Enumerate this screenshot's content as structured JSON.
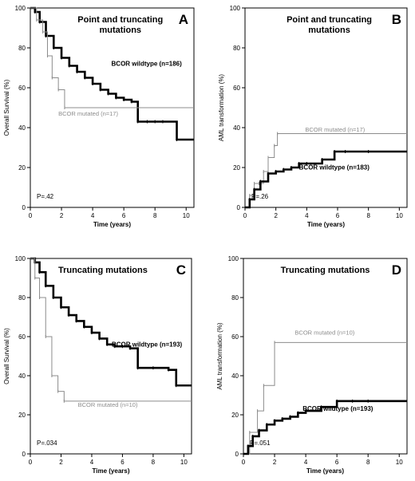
{
  "panels": [
    {
      "letter": "A",
      "title_lines": [
        "Point and truncating",
        "mutations"
      ],
      "ylabel": "Overall Survival (%)",
      "xlabel": "Time (years)",
      "p_value": "P=.42",
      "y_ticks": [
        "0",
        "20",
        "40",
        "60",
        "80",
        "100"
      ],
      "x_ticks": [
        "0",
        "2",
        "4",
        "6",
        "8",
        "10"
      ],
      "series_labels": [
        "BCOR wildtype (n=186)",
        "BCOR mutated (n=17)"
      ]
    },
    {
      "letter": "B",
      "title_lines": [
        "Point and truncating",
        "mutations"
      ],
      "ylabel": "AML transformation (%)",
      "xlabel": "Time (years)",
      "p_value": "P=.26",
      "y_ticks": [
        "0",
        "20",
        "40",
        "60",
        "80",
        "100"
      ],
      "x_ticks": [
        "0",
        "2",
        "4",
        "6",
        "8",
        "10"
      ],
      "series_labels": [
        "BCOR mutated (n=17)",
        "BCOR wildtype (n=183)"
      ]
    },
    {
      "letter": "C",
      "title_lines": [
        "Truncating mutations"
      ],
      "ylabel": "Overall Survival (%)",
      "xlabel": "Time (years)",
      "p_value": "P=.034",
      "y_ticks": [
        "0",
        "20",
        "40",
        "60",
        "80",
        "100"
      ],
      "x_ticks": [
        "0",
        "2",
        "4",
        "6",
        "8",
        "10"
      ],
      "series_labels": [
        "BCOR wildtype (n=193)",
        "BCOR mutated (n=10)"
      ]
    },
    {
      "letter": "D",
      "title_lines": [
        "Truncating mutations"
      ],
      "ylabel": "AML transformation (%)",
      "xlabel": "Time (years)",
      "p_value": "P=.051",
      "y_ticks": [
        "0",
        "20",
        "40",
        "60",
        "80",
        "100"
      ],
      "x_ticks": [
        "0",
        "2",
        "4",
        "6",
        "8",
        "10"
      ],
      "series_labels": [
        "BCOR mutated (n=10)",
        "BCOR wildtype (n=193)"
      ]
    }
  ],
  "colors": {
    "wildtype": "#000000",
    "mutated": "#8c8c8c",
    "axis": "#000000"
  },
  "chart_data": [
    {
      "type": "line",
      "title": "Point and truncating mutations",
      "xlabel": "Time (years)",
      "ylabel": "Overall Survival (%)",
      "xlim": [
        0,
        10.5
      ],
      "ylim": [
        0,
        100
      ],
      "annotation": "P=.42",
      "series": [
        {
          "name": "BCOR wildtype (n=186)",
          "x": [
            0,
            0.3,
            0.6,
            1,
            1.5,
            2,
            2.5,
            3,
            3.5,
            4,
            4.5,
            5,
            5.5,
            6,
            6.5,
            6.9,
            7.5,
            8,
            8.5,
            9.4,
            10.5
          ],
          "y": [
            100,
            98,
            93,
            86,
            80,
            75,
            71,
            68,
            65,
            62,
            59,
            57,
            55,
            54,
            53,
            43,
            43,
            43,
            43,
            34,
            34
          ]
        },
        {
          "name": "BCOR mutated (n=17)",
          "x": [
            0,
            0.4,
            0.8,
            1.1,
            1.4,
            1.8,
            2.2,
            10.5
          ],
          "y": [
            100,
            94,
            88,
            76,
            65,
            59,
            50,
            50
          ]
        }
      ]
    },
    {
      "type": "line",
      "title": "Point and truncating mutations",
      "xlabel": "Time (years)",
      "ylabel": "AML transformation (%)",
      "xlim": [
        0,
        10.5
      ],
      "ylim": [
        0,
        100
      ],
      "annotation": "P=.26",
      "series": [
        {
          "name": "BCOR mutated (n=17)",
          "x": [
            0,
            0.3,
            0.6,
            0.9,
            1.2,
            1.5,
            1.9,
            2.1,
            10.5
          ],
          "y": [
            0,
            6,
            12,
            12,
            18,
            25,
            31,
            37,
            37
          ]
        },
        {
          "name": "BCOR wildtype (n=183)",
          "x": [
            0,
            0.3,
            0.6,
            1,
            1.5,
            2,
            2.5,
            3,
            3.5,
            4,
            5,
            5.8,
            6.5,
            8,
            10.5
          ],
          "y": [
            0,
            4,
            9,
            13,
            17,
            18,
            19,
            20,
            22,
            22,
            24,
            28,
            28,
            28,
            28
          ]
        }
      ]
    },
    {
      "type": "line",
      "title": "Truncating mutations",
      "xlabel": "Time (years)",
      "ylabel": "Overall Survival (%)",
      "xlim": [
        0,
        10.5
      ],
      "ylim": [
        0,
        100
      ],
      "annotation": "P=.034",
      "series": [
        {
          "name": "BCOR wildtype (n=193)",
          "x": [
            0,
            0.3,
            0.6,
            1,
            1.5,
            2,
            2.5,
            3,
            3.5,
            4,
            4.5,
            5,
            5.5,
            6,
            6.5,
            7,
            8,
            9,
            9.5,
            10.5
          ],
          "y": [
            100,
            98,
            93,
            86,
            80,
            75,
            71,
            68,
            65,
            62,
            59,
            56,
            55,
            55,
            54,
            44,
            44,
            43,
            35,
            35
          ]
        },
        {
          "name": "BCOR mutated (n=10)",
          "x": [
            0,
            0.3,
            0.6,
            1,
            1.4,
            1.8,
            2.2,
            10.5
          ],
          "y": [
            100,
            90,
            80,
            60,
            40,
            32,
            27,
            27
          ]
        }
      ]
    },
    {
      "type": "line",
      "title": "Truncating mutations",
      "xlabel": "Time (years)",
      "ylabel": "AML transformation (%)",
      "xlim": [
        0,
        10.5
      ],
      "ylim": [
        0,
        100
      ],
      "annotation": "P=.051",
      "series": [
        {
          "name": "BCOR mutated (n=10)",
          "x": [
            0,
            0.4,
            0.9,
            1.3,
            2,
            10.5
          ],
          "y": [
            0,
            11,
            22,
            35,
            57,
            57
          ]
        },
        {
          "name": "BCOR wildtype (n=193)",
          "x": [
            0,
            0.3,
            0.6,
            1,
            1.5,
            2,
            2.5,
            3,
            3.5,
            4,
            5,
            6,
            7,
            8,
            10.5
          ],
          "y": [
            0,
            4,
            9,
            12,
            15,
            17,
            18,
            19,
            21,
            22,
            24,
            27,
            27,
            27,
            27
          ]
        }
      ]
    }
  ]
}
